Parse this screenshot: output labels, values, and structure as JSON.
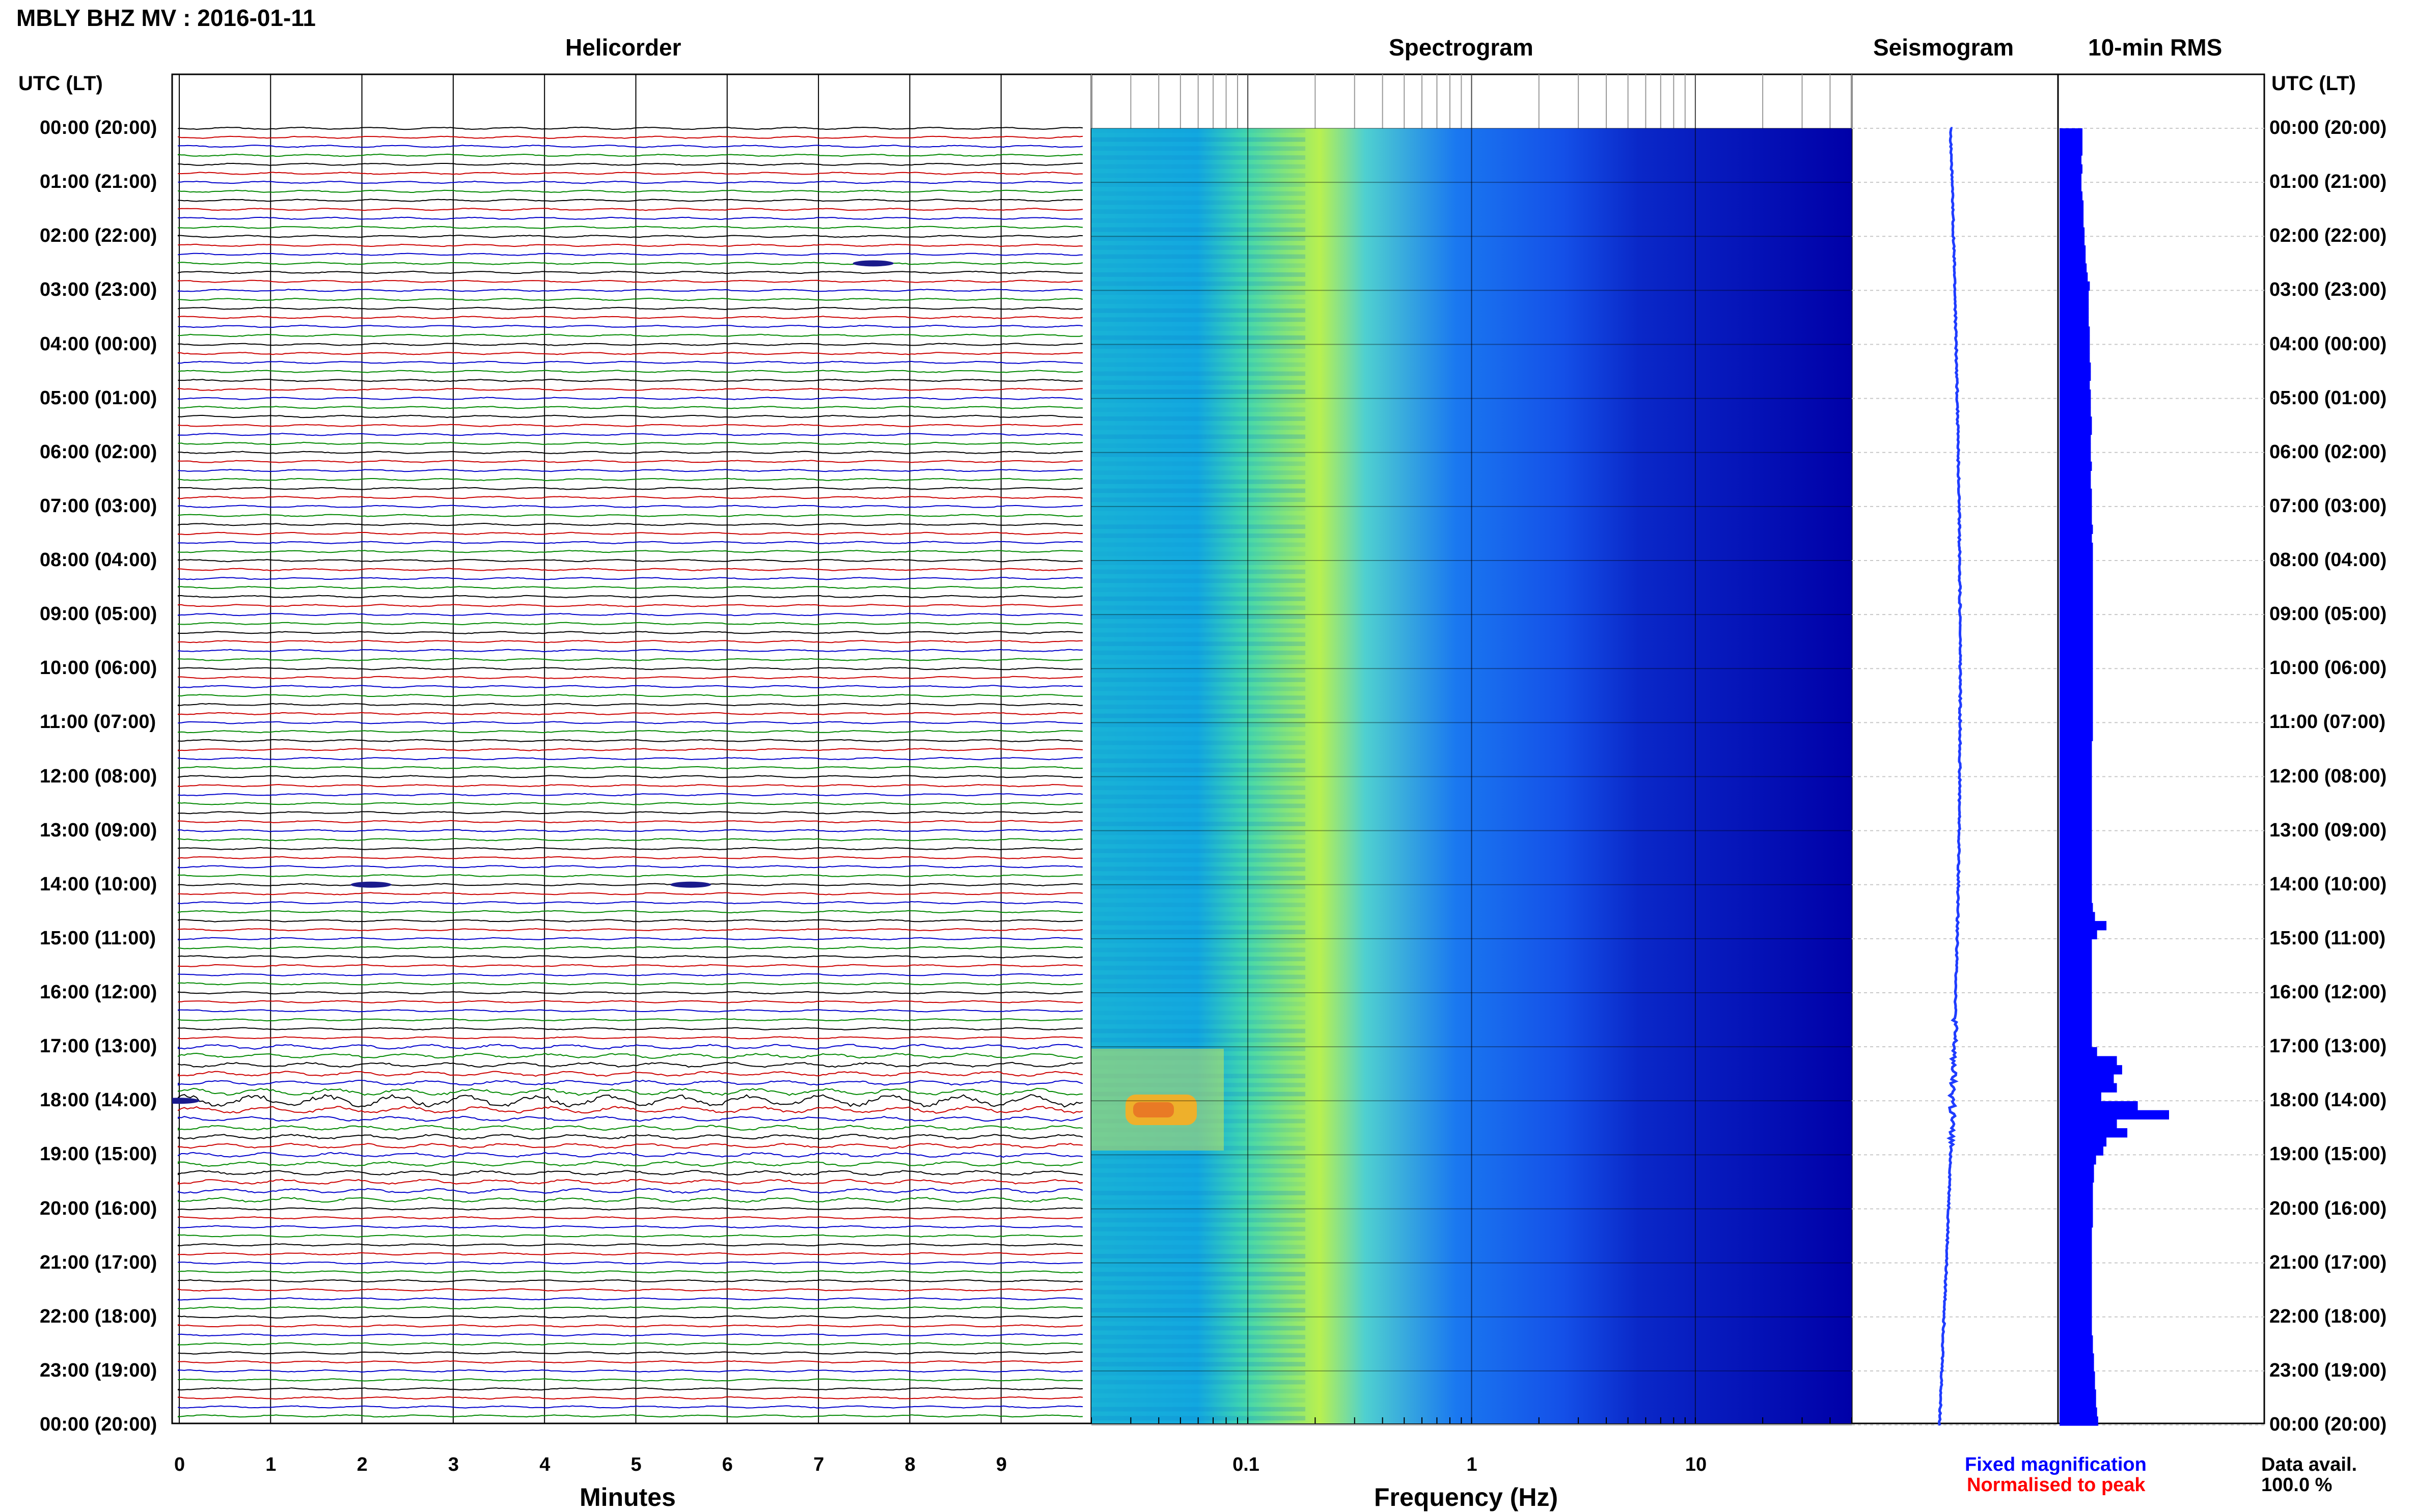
{
  "header": {
    "title": "MBLY BHZ MV : 2016-01-11",
    "left_axis_label": "UTC (LT)",
    "right_axis_label": "UTC (LT)"
  },
  "panels": {
    "helicorder": "Helicorder",
    "spectrogram": "Spectrogram",
    "seismogram": "Seismogram",
    "rms": "10-min RMS"
  },
  "hours": [
    "00:00 (20:00)",
    "01:00 (21:00)",
    "02:00 (22:00)",
    "03:00 (23:00)",
    "04:00 (00:00)",
    "05:00 (01:00)",
    "06:00 (02:00)",
    "07:00 (03:00)",
    "08:00 (04:00)",
    "09:00 (05:00)",
    "10:00 (06:00)",
    "11:00 (07:00)",
    "12:00 (08:00)",
    "13:00 (09:00)",
    "14:00 (10:00)",
    "15:00 (11:00)",
    "16:00 (12:00)",
    "17:00 (13:00)",
    "18:00 (14:00)",
    "19:00 (15:00)",
    "20:00 (16:00)",
    "21:00 (17:00)",
    "22:00 (18:00)",
    "23:00 (19:00)",
    "00:00 (20:00)"
  ],
  "x_axes": {
    "minutes": {
      "title": "Minutes",
      "ticks": [
        "0",
        "1",
        "2",
        "3",
        "4",
        "5",
        "6",
        "7",
        "8",
        "9"
      ]
    },
    "frequency": {
      "title": "Frequency (Hz)",
      "ticks": [
        "0.1",
        "1",
        "10"
      ],
      "scale": "log"
    }
  },
  "legend": {
    "fixed": "Fixed magnification",
    "normalised": "Normalised to peak",
    "fixed_color": "#0000ff",
    "normalised_color": "#ff0000"
  },
  "availability": {
    "label": "Data avail.",
    "value": "100.0 %"
  },
  "colors": {
    "trace_cycle": [
      "#000000",
      "#cc0000",
      "#0000cc",
      "#008800"
    ],
    "spectrogram_low": "#0000a0",
    "spectrogram_high": "#ff0000",
    "seismogram": "#1f3cff",
    "rms": "#0000ff"
  },
  "chart_data": [
    {
      "type": "line",
      "title": "Helicorder",
      "xlabel": "Minutes",
      "ylabel": "UTC (LT)",
      "xlim": [
        0,
        10
      ],
      "ylim": [
        "00:00",
        "24:00"
      ],
      "traces_per_hour": 6,
      "traces_total": 144,
      "grid": true,
      "note_events": [
        {
          "hour": 2,
          "trace": 3,
          "minute": 7.6
        },
        {
          "hour": 14,
          "trace": 0,
          "minute": 2.1
        },
        {
          "hour": 14,
          "trace": 0,
          "minute": 5.6
        },
        {
          "hour": 18,
          "trace": 0,
          "minute": 0
        }
      ]
    },
    {
      "type": "heatmap",
      "title": "Spectrogram",
      "xlabel": "Frequency (Hz)",
      "ylabel": "UTC (LT)",
      "xlim": [
        0.02,
        50
      ],
      "xscale": "log",
      "ylim": [
        "00:00",
        "24:00"
      ]
    },
    {
      "type": "line",
      "title": "Seismogram",
      "ylim": [
        "00:00",
        "24:00"
      ]
    },
    {
      "type": "bar",
      "title": "10-min RMS",
      "ylim": [
        "00:00",
        "24:00"
      ],
      "bins": 144,
      "values": [
        0.22,
        0.22,
        0.22,
        0.21,
        0.22,
        0.21,
        0.21,
        0.22,
        0.23,
        0.23,
        0.23,
        0.24,
        0.24,
        0.25,
        0.25,
        0.26,
        0.27,
        0.29,
        0.28,
        0.28,
        0.28,
        0.28,
        0.29,
        0.29,
        0.29,
        0.29,
        0.3,
        0.3,
        0.29,
        0.3,
        0.3,
        0.3,
        0.31,
        0.31,
        0.3,
        0.3,
        0.3,
        0.31,
        0.3,
        0.3,
        0.31,
        0.31,
        0.31,
        0.31,
        0.32,
        0.31,
        0.32,
        0.32,
        0.32,
        0.32,
        0.32,
        0.32,
        0.32,
        0.32,
        0.32,
        0.32,
        0.32,
        0.32,
        0.32,
        0.32,
        0.32,
        0.32,
        0.32,
        0.32,
        0.32,
        0.32,
        0.32,
        0.32,
        0.31,
        0.31,
        0.31,
        0.31,
        0.31,
        0.31,
        0.31,
        0.31,
        0.31,
        0.31,
        0.31,
        0.31,
        0.31,
        0.31,
        0.31,
        0.31,
        0.31,
        0.31,
        0.32,
        0.34,
        0.45,
        0.36,
        0.31,
        0.31,
        0.31,
        0.31,
        0.31,
        0.31,
        0.31,
        0.31,
        0.31,
        0.31,
        0.31,
        0.31,
        0.36,
        0.55,
        0.6,
        0.52,
        0.55,
        0.4,
        0.75,
        1.05,
        0.55,
        0.65,
        0.45,
        0.42,
        0.35,
        0.33,
        0.33,
        0.32,
        0.32,
        0.32,
        0.32,
        0.32,
        0.31,
        0.31,
        0.31,
        0.31,
        0.31,
        0.31,
        0.31,
        0.31,
        0.31,
        0.31,
        0.31,
        0.31,
        0.32,
        0.32,
        0.33,
        0.33,
        0.34,
        0.34,
        0.35,
        0.35,
        0.36,
        0.37
      ]
    }
  ]
}
